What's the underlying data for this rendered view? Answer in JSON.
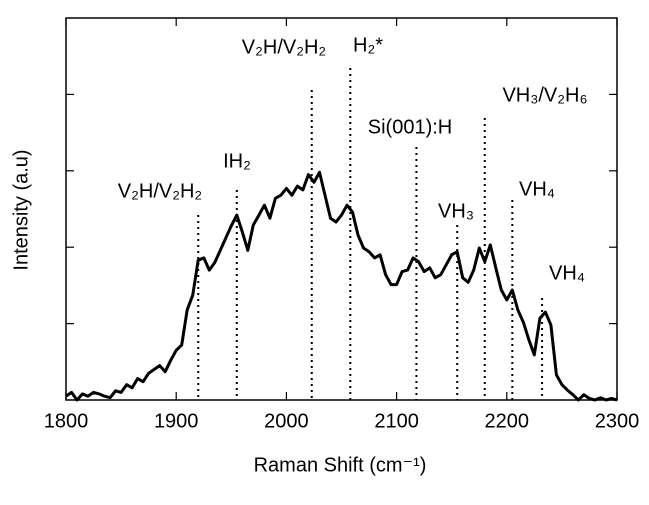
{
  "chart_data": {
    "type": "line",
    "xlabel": "Raman Shift (cm⁻¹)",
    "ylabel": "Intensity  (a.u)",
    "x": [
      1800,
      1805,
      1810,
      1815,
      1820,
      1825,
      1830,
      1835,
      1840,
      1845,
      1850,
      1855,
      1860,
      1865,
      1870,
      1875,
      1880,
      1885,
      1890,
      1895,
      1900,
      1905,
      1910,
      1915,
      1920,
      1925,
      1930,
      1935,
      1940,
      1945,
      1950,
      1955,
      1960,
      1965,
      1970,
      1975,
      1980,
      1985,
      1990,
      1995,
      2000,
      2005,
      2010,
      2015,
      2020,
      2025,
      2030,
      2035,
      2040,
      2045,
      2050,
      2055,
      2060,
      2065,
      2070,
      2075,
      2080,
      2085,
      2090,
      2095,
      2100,
      2105,
      2110,
      2115,
      2120,
      2125,
      2130,
      2135,
      2140,
      2145,
      2150,
      2155,
      2160,
      2165,
      2170,
      2175,
      2180,
      2185,
      2190,
      2195,
      2200,
      2205,
      2210,
      2215,
      2220,
      2225,
      2230,
      2235,
      2240,
      2245,
      2250,
      2255,
      2260,
      2265,
      2270,
      2275,
      2280,
      2285,
      2290,
      2295,
      2300
    ],
    "series": [
      {
        "color": "#000000",
        "values": [
          0.05,
          0.1,
          0.0,
          0.08,
          0.05,
          0.1,
          0.08,
          0.05,
          0.03,
          0.12,
          0.1,
          0.2,
          0.16,
          0.28,
          0.24,
          0.35,
          0.4,
          0.45,
          0.37,
          0.52,
          0.65,
          0.72,
          1.18,
          1.37,
          1.83,
          1.86,
          1.7,
          1.8,
          1.96,
          2.12,
          2.28,
          2.42,
          2.2,
          1.96,
          2.29,
          2.42,
          2.55,
          2.38,
          2.64,
          2.68,
          2.77,
          2.68,
          2.8,
          2.75,
          2.95,
          2.85,
          2.98,
          2.68,
          2.38,
          2.33,
          2.42,
          2.55,
          2.46,
          2.16,
          1.99,
          1.94,
          1.86,
          1.9,
          1.64,
          1.51,
          1.51,
          1.68,
          1.7,
          1.86,
          1.81,
          1.68,
          1.73,
          1.6,
          1.64,
          1.77,
          1.9,
          1.94,
          1.6,
          1.54,
          1.7,
          1.99,
          1.81,
          2.03,
          1.73,
          1.44,
          1.31,
          1.44,
          1.18,
          1.02,
          0.79,
          0.59,
          1.07,
          1.15,
          0.98,
          0.33,
          0.2,
          0.13,
          0.07,
          0.0,
          0.07,
          0.02,
          0.0,
          0.03,
          0.0,
          0.02,
          0.0
        ]
      }
    ],
    "xlim": [
      1800,
      2300
    ],
    "xticks": [
      1800,
      1900,
      2000,
      2100,
      2200,
      2300
    ],
    "ylim": [
      0,
      5
    ],
    "yticks": [
      1,
      2,
      3,
      4
    ],
    "annotations": [
      {
        "label": "V₂H/V₂H₂",
        "x": 1920
      },
      {
        "label": "IH₂",
        "x": 1955
      },
      {
        "label": "V₂H/V₂H₂",
        "x": 2023
      },
      {
        "label": "H₂*",
        "x": 2058
      },
      {
        "label": "Si(001):H",
        "x": 2118
      },
      {
        "label": "VH₃",
        "x": 2155
      },
      {
        "label": "VH₃/V₂H₆",
        "x": 2180
      },
      {
        "label": "VH₄",
        "x": 2205
      },
      {
        "label": "VH₄",
        "x": 2232
      }
    ]
  }
}
